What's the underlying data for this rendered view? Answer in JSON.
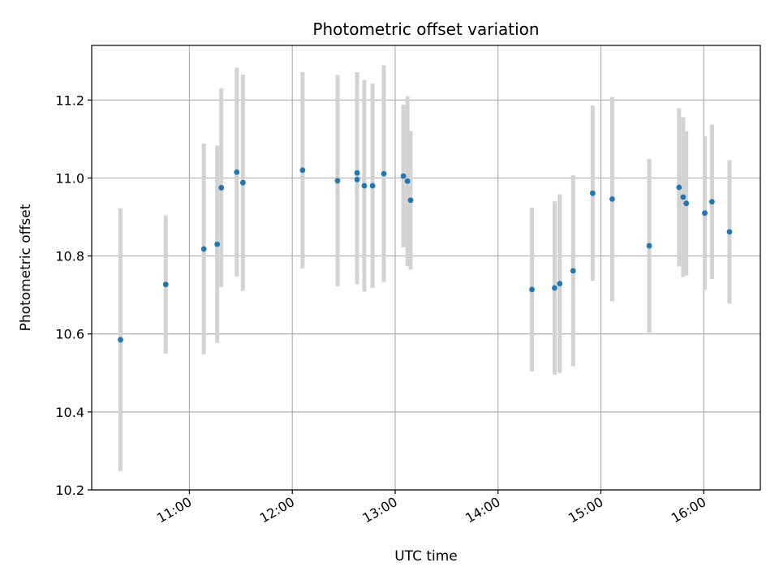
{
  "chart_data": {
    "type": "scatter",
    "title": "Photometric offset variation",
    "xlabel": "UTC time",
    "ylabel": "Photometric offset",
    "x_unit": "UTC time of day (hours)",
    "xlim": [
      10.05,
      16.55
    ],
    "ylim": [
      10.2,
      11.34
    ],
    "x_ticks": [
      {
        "value": 11,
        "label": "11:00"
      },
      {
        "value": 12,
        "label": "12:00"
      },
      {
        "value": 13,
        "label": "13:00"
      },
      {
        "value": 14,
        "label": "14:00"
      },
      {
        "value": 15,
        "label": "15:00"
      },
      {
        "value": 16,
        "label": "16:00"
      }
    ],
    "y_ticks": [
      {
        "value": 10.2,
        "label": "10.2"
      },
      {
        "value": 10.4,
        "label": "10.4"
      },
      {
        "value": 10.6,
        "label": "10.6"
      },
      {
        "value": 10.8,
        "label": "10.8"
      },
      {
        "value": 11.0,
        "label": "11.0"
      },
      {
        "value": 11.2,
        "label": "11.2"
      }
    ],
    "grid": true,
    "marker_color": "#1f77b4",
    "errorbar_color": "#d3d3d3",
    "points": [
      {
        "x": 10.33,
        "y": 10.585,
        "err": 0.337
      },
      {
        "x": 10.77,
        "y": 10.727,
        "err": 0.177
      },
      {
        "x": 11.14,
        "y": 10.818,
        "err": 0.27
      },
      {
        "x": 11.27,
        "y": 10.83,
        "err": 0.253
      },
      {
        "x": 11.31,
        "y": 10.975,
        "err": 0.255
      },
      {
        "x": 11.46,
        "y": 11.015,
        "err": 0.268
      },
      {
        "x": 11.52,
        "y": 10.988,
        "err": 0.277
      },
      {
        "x": 12.1,
        "y": 11.02,
        "err": 0.252
      },
      {
        "x": 12.44,
        "y": 10.993,
        "err": 0.271
      },
      {
        "x": 12.63,
        "y": 11.013,
        "err": 0.258
      },
      {
        "x": 12.63,
        "y": 10.996,
        "err": 0.268
      },
      {
        "x": 12.7,
        "y": 10.98,
        "err": 0.271
      },
      {
        "x": 12.78,
        "y": 10.98,
        "err": 0.262
      },
      {
        "x": 12.89,
        "y": 11.011,
        "err": 0.278
      },
      {
        "x": 13.08,
        "y": 11.005,
        "err": 0.183
      },
      {
        "x": 13.12,
        "y": 10.992,
        "err": 0.218
      },
      {
        "x": 13.15,
        "y": 10.943,
        "err": 0.178
      },
      {
        "x": 14.33,
        "y": 10.714,
        "err": 0.21
      },
      {
        "x": 14.55,
        "y": 10.718,
        "err": 0.222
      },
      {
        "x": 14.6,
        "y": 10.729,
        "err": 0.229
      },
      {
        "x": 14.73,
        "y": 10.762,
        "err": 0.245
      },
      {
        "x": 14.92,
        "y": 10.961,
        "err": 0.225
      },
      {
        "x": 15.11,
        "y": 10.946,
        "err": 0.262
      },
      {
        "x": 15.47,
        "y": 10.826,
        "err": 0.223
      },
      {
        "x": 15.76,
        "y": 10.976,
        "err": 0.203
      },
      {
        "x": 15.8,
        "y": 10.951,
        "err": 0.205
      },
      {
        "x": 15.83,
        "y": 10.935,
        "err": 0.185
      },
      {
        "x": 16.01,
        "y": 10.91,
        "err": 0.197
      },
      {
        "x": 16.08,
        "y": 10.939,
        "err": 0.198
      },
      {
        "x": 16.25,
        "y": 10.862,
        "err": 0.184
      }
    ]
  }
}
